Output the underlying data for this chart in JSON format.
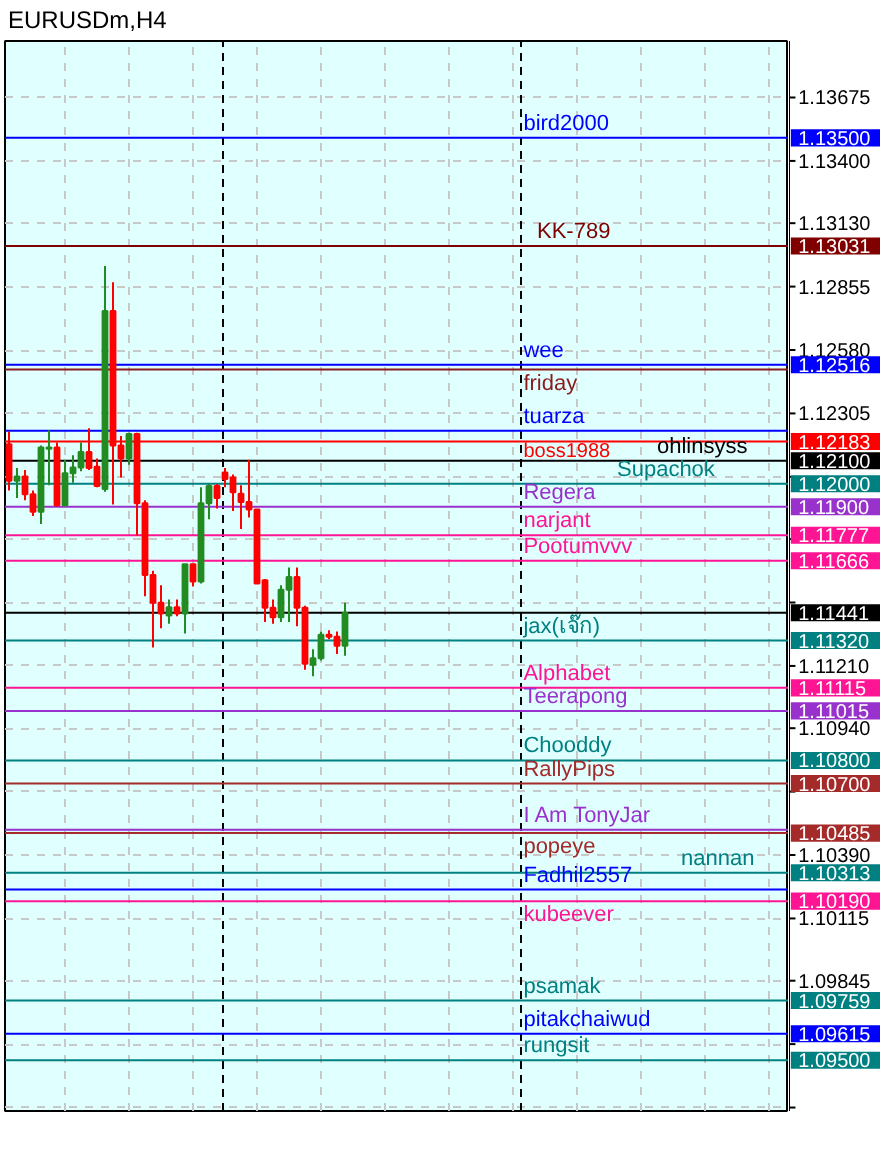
{
  "chart_data": {
    "type": "candlestick",
    "title": "EURUSDm,H4",
    "categories": [
      null,
      null,
      null,
      null,
      null,
      null,
      null,
      null,
      null,
      null,
      null,
      null,
      null,
      null,
      null,
      null,
      null,
      null,
      null,
      null,
      null,
      null,
      null,
      null,
      null,
      null,
      null,
      null,
      null,
      null,
      null,
      null,
      null,
      null,
      null,
      null,
      null,
      null,
      null,
      null,
      null,
      null,
      null,
      null,
      null,
      null,
      null,
      null,
      null,
      null,
      null,
      null,
      null,
      null,
      null,
      null,
      null,
      null,
      null,
      null,
      null,
      null,
      null,
      null,
      null,
      null,
      null,
      null,
      null,
      null,
      null,
      null,
      null,
      null,
      null,
      null,
      null,
      null,
      null,
      null,
      null,
      null,
      null,
      null,
      null,
      null,
      null,
      null,
      null,
      null,
      null,
      null,
      null,
      null,
      null,
      null,
      null,
      null
    ],
    "ohlc": [
      [
        1.12171,
        1.12227,
        1.11971,
        1.12013
      ],
      [
        1.12013,
        1.12068,
        1.11938,
        1.12032
      ],
      [
        1.12032,
        1.1206,
        1.11929,
        1.11954
      ],
      [
        1.11954,
        1.11971,
        1.1186,
        1.11879
      ],
      [
        1.11879,
        1.12166,
        1.11826,
        1.12157
      ],
      [
        1.12152,
        1.12232,
        1.11993,
        1.12157
      ],
      [
        1.12157,
        1.12179,
        1.11901,
        1.11907
      ],
      [
        1.11907,
        1.12104,
        1.11901,
        1.12046
      ],
      [
        1.12046,
        1.12124,
        1.12004,
        1.12071
      ],
      [
        1.12071,
        1.12179,
        1.12054,
        1.12138
      ],
      [
        1.12138,
        1.12241,
        1.1206,
        1.12068
      ],
      [
        1.12074,
        1.1211,
        1.11985,
        1.1199
      ],
      [
        1.11977,
        1.12944,
        1.11965,
        1.12749
      ],
      [
        1.12749,
        1.12874,
        1.1191,
        1.12166
      ],
      [
        1.12166,
        1.12207,
        1.12027,
        1.1211
      ],
      [
        1.1211,
        1.12221,
        1.12082,
        1.12216
      ],
      [
        1.12216,
        1.12221,
        1.11776,
        1.11915
      ],
      [
        1.11915,
        1.11929,
        1.11512,
        1.11604
      ],
      [
        1.11604,
        1.11623,
        1.1129,
        1.11484
      ],
      [
        1.11484,
        1.1156,
        1.11373,
        1.11437
      ],
      [
        1.11429,
        1.11498,
        1.11393,
        1.11465
      ],
      [
        1.11465,
        1.11498,
        1.11426,
        1.11437
      ],
      [
        1.11437,
        1.11651,
        1.11351,
        1.11651
      ],
      [
        1.11651,
        1.11651,
        1.11554,
        1.11576
      ],
      [
        1.11576,
        1.11985,
        1.11568,
        1.11915
      ],
      [
        1.11915,
        1.11999,
        1.11846,
        1.1199
      ],
      [
        1.1199,
        1.11999,
        1.11893,
        1.11938
      ],
      [
        1.12049,
        1.12068,
        1.11985,
        1.12021
      ],
      [
        1.12027,
        1.1204,
        1.11882,
        1.11963
      ],
      [
        1.11957,
        1.11993,
        1.11804,
        1.11921
      ],
      [
        1.11921,
        1.12104,
        1.11854,
        1.11888
      ],
      [
        1.11888,
        1.11888,
        1.11568,
        1.11568
      ],
      [
        1.11582,
        1.11587,
        1.11401,
        1.11462
      ],
      [
        1.11462,
        1.11498,
        1.11393,
        1.11421
      ],
      [
        1.11421,
        1.1156,
        1.11401,
        1.1154
      ],
      [
        1.1154,
        1.11637,
        1.11401,
        1.11596
      ],
      [
        1.11596,
        1.11637,
        1.11382,
        1.11462
      ],
      [
        1.11462,
        1.11471,
        1.11193,
        1.1122
      ],
      [
        1.11215,
        1.11282,
        1.11165,
        1.11243
      ],
      [
        1.11243,
        1.11359,
        1.11234,
        1.11345
      ],
      [
        1.11345,
        1.11365,
        1.11326,
        1.11337
      ],
      [
        1.11337,
        1.11359,
        1.11262,
        1.11298
      ],
      [
        1.11298,
        1.11484,
        1.11254,
        1.11441
      ],
      null,
      null,
      null,
      null,
      null,
      null,
      null,
      null,
      null,
      null,
      null,
      null,
      null,
      null,
      null,
      null,
      null,
      null,
      null,
      null,
      null,
      null,
      null,
      null,
      null,
      null,
      null,
      null,
      null,
      null,
      null,
      null,
      null,
      null,
      null,
      null,
      null,
      null,
      null,
      null,
      null,
      null,
      null,
      null,
      null,
      null,
      null,
      null,
      null,
      null,
      null,
      null,
      null,
      null,
      null
    ],
    "annotations": [
      "1.13500",
      "1.13031",
      "1.12516",
      "1.12183",
      "1.12100",
      "1.12000",
      "1.11900",
      "1.11777",
      "1.11666",
      "1.11441",
      "1.11320",
      "1.11115",
      "1.11015",
      "1.10800",
      "1.10700",
      "1.10485",
      "1.10313",
      "1.10190",
      "1.09759",
      "1.09615",
      "1.09500"
    ],
    "colors": [
      "#ff0000",
      "#228b22",
      "#ff0000",
      "#ff0000",
      "#228b22",
      "#228b22",
      "#ff0000",
      "#228b22",
      "#228b22",
      "#228b22",
      "#ff0000",
      "#ff0000",
      "#228b22",
      "#ff0000",
      "#ff0000",
      "#228b22",
      "#ff0000",
      "#ff0000",
      "#ff0000",
      "#ff0000",
      "#228b22",
      "#ff0000",
      "#228b22",
      "#ff0000",
      "#228b22",
      "#228b22",
      "#ff0000",
      "#ff0000",
      "#ff0000",
      "#ff0000",
      "#ff0000",
      "#ff0000",
      "#ff0000",
      "#ff0000",
      "#228b22",
      "#228b22",
      "#ff0000",
      "#ff0000",
      "#228b22",
      "#228b22",
      "#ff0000",
      "#ff0000",
      "#228b22",
      null,
      null,
      null,
      null,
      null,
      null,
      null,
      null,
      null,
      null,
      null,
      null,
      null,
      null,
      null,
      null,
      null,
      null,
      null,
      null,
      null,
      null,
      null,
      null,
      null,
      null,
      null,
      null,
      null,
      null,
      null,
      null,
      null,
      null,
      null,
      null,
      null,
      null,
      null,
      null,
      null,
      null,
      null,
      null,
      null,
      null,
      null,
      null,
      null,
      null,
      null,
      null,
      null,
      null,
      null
    ],
    "ylim": [
      1.0928,
      1.1392
    ],
    "yticks": [
      1.13675,
      {
        "value": 1.134,
        "label": "1.13400"
      },
      {
        "value": 1.1313,
        "label": "1.13130"
      },
      1.12855,
      {
        "value": 1.1258,
        "label": "1.12580"
      },
      1.12305,
      {
        "value": 1.1203,
        "label": null
      },
      {
        "value": 1.1176,
        "label": null
      },
      {
        "value": 1.11485,
        "label": null
      },
      {
        "value": 1.1121,
        "label": "1.11210"
      },
      {
        "value": 1.1094,
        "label": "1.10940"
      },
      {
        "value": 1.10665,
        "label": null
      },
      {
        "value": 1.1039,
        "label": "1.10390"
      },
      1.10115,
      1.09845,
      {
        "value": 1.0957,
        "label": null
      },
      {
        "value": 1.09295,
        "label": null
      }
    ],
    "grid": true,
    "ref_lines": [
      {
        "axis": "y",
        "value": 1.135,
        "label": "bird2000",
        "color": "#0000ff"
      },
      {
        "axis": "y",
        "value": 1.13031,
        "label": "KK-789",
        "color": "#800000"
      },
      {
        "axis": "y",
        "value": 1.12516,
        "label": "wee",
        "color": "#0000ff"
      },
      {
        "axis": "y",
        "value": 1.12495,
        "label": "friday",
        "color": "#8b1a1a"
      },
      {
        "axis": "y",
        "value": 1.1223,
        "label": "tuarza",
        "color": "#0000ff"
      },
      {
        "axis": "y",
        "value": 1.12183,
        "label": "boss1988",
        "color": "#ff0000"
      },
      {
        "axis": "y",
        "value": 1.121,
        "label": "ohlinsyss",
        "color": "#000000"
      },
      {
        "axis": "y",
        "value": 1.12,
        "label": "Supachok",
        "color": "#008080"
      },
      {
        "axis": "y",
        "value": 1.119,
        "label": "Regera",
        "color": "#9932cc"
      },
      {
        "axis": "y",
        "value": 1.11777,
        "label": "narjant",
        "color": "#ff1493"
      },
      {
        "axis": "y",
        "value": 1.11666,
        "label": "Pootumvvv",
        "color": "#ff1493"
      },
      {
        "axis": "y",
        "value": 1.11441,
        "label": null,
        "color": "#000000"
      },
      {
        "axis": "y",
        "value": 1.1132,
        "label": "jax(เจ๊ก)",
        "color": "#008080"
      },
      {
        "axis": "y",
        "value": 1.11115,
        "label": "Alphabet",
        "color": "#ff1493"
      },
      {
        "axis": "y",
        "value": 1.11015,
        "label": "Teerapong",
        "color": "#9932cc"
      },
      {
        "axis": "y",
        "value": 1.108,
        "label": "Chooddy",
        "color": "#008080"
      },
      {
        "axis": "y",
        "value": 1.107,
        "label": "RallyPips",
        "color": "#a52a2a"
      },
      {
        "axis": "y",
        "value": 1.105,
        "label": "I Am TonyJar",
        "color": "#9932cc"
      },
      {
        "axis": "y",
        "value": 1.10485,
        "label": "popeye",
        "color": "#a52a2a"
      },
      {
        "axis": "y",
        "value": 1.10313,
        "label": "nannan",
        "color": "#008080"
      },
      {
        "axis": "y",
        "value": 1.1024,
        "label": "Fadhil2557",
        "color": "#0000ff"
      },
      {
        "axis": "y",
        "value": 1.1019,
        "label": "kubeever",
        "color": "#ff1493"
      },
      {
        "axis": "y",
        "value": 1.09759,
        "label": "psamak",
        "color": "#008080"
      },
      {
        "axis": "y",
        "value": 1.09615,
        "label": "pitakchaiwud",
        "color": "#0000ff"
      },
      {
        "axis": "y",
        "value": 1.095,
        "label": "rungsit",
        "color": "#008080"
      }
    ]
  }
}
